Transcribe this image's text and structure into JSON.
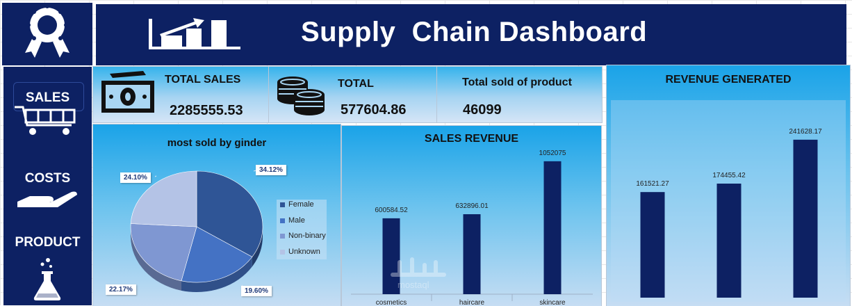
{
  "header": {
    "title": "Supply  Chain Dashboard"
  },
  "sidebar": {
    "items": [
      {
        "label": "SALES"
      },
      {
        "label": "COSTS"
      },
      {
        "label": "PRODUCT"
      }
    ]
  },
  "kpis": {
    "total_sales": {
      "label": "TOTAL SALES",
      "value": "2285555.53"
    },
    "total": {
      "label": "TOTAL",
      "value": "577604.86"
    },
    "total_sold": {
      "label": "Total sold of product",
      "value": "46099"
    }
  },
  "colors": {
    "navy": "#0d2163",
    "bar": "#0d2163",
    "card_top": "#1aa3e8"
  },
  "chart_data": [
    {
      "type": "pie",
      "title": "most sold by ginder",
      "categories": [
        "Female",
        "Male",
        "Non-binary",
        "Unknown"
      ],
      "values": [
        34.12,
        19.6,
        22.17,
        24.1
      ],
      "labels": [
        "34.12%",
        "19.60%",
        "22.17%",
        "24.10%"
      ],
      "colors": [
        "#2f5596",
        "#4472c4",
        "#7f97d2",
        "#b4c3e6"
      ],
      "legend": "right"
    },
    {
      "type": "bar",
      "title": "SALES REVENUE",
      "categories": [
        "cosmetics",
        "haircare",
        "skincare"
      ],
      "values": [
        600584.52,
        632896.01,
        1052075
      ],
      "labels": [
        "600584.52",
        "632896.01",
        "1052075"
      ],
      "ylim": [
        0,
        1200000
      ]
    },
    {
      "type": "bar",
      "title": "REVENUE GENERATED",
      "categories": [
        "",
        "",
        ""
      ],
      "values": [
        161521.27,
        174455.42,
        241628.17
      ],
      "labels": [
        "161521.27",
        "174455.42",
        "241628.17"
      ],
      "ylim": [
        0,
        300000
      ]
    }
  ],
  "watermark": "mostaql"
}
